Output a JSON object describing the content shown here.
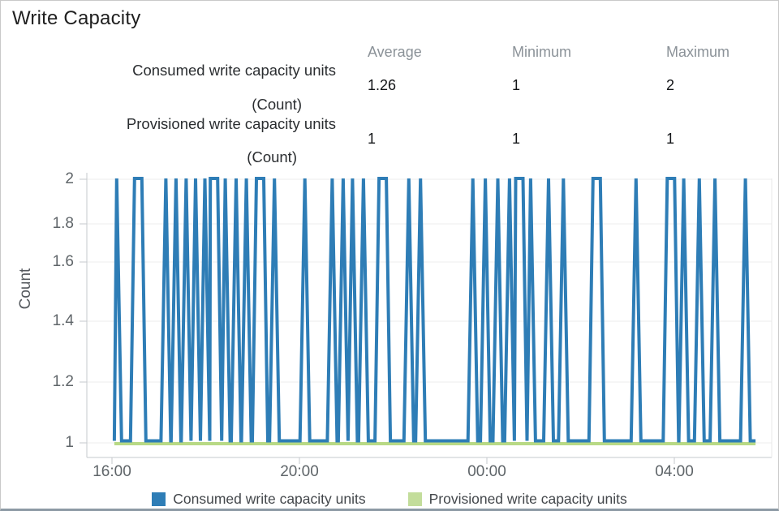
{
  "header": {
    "title": "Write Capacity"
  },
  "stats_table": {
    "columns": [
      "Average",
      "Minimum",
      "Maximum"
    ],
    "rows": [
      {
        "label": "Consumed write capacity units",
        "unit": "(Count)",
        "average": "1.26",
        "minimum": "1",
        "maximum": "2"
      },
      {
        "label": "Provisioned write capacity units",
        "unit": "(Count)",
        "average": "1",
        "minimum": "1",
        "maximum": "1"
      }
    ]
  },
  "chart_data": {
    "type": "line",
    "title": "Write Capacity",
    "xlabel": "",
    "ylabel": "Count",
    "ylim": [
      1,
      2
    ],
    "yticks": [
      2,
      1.8,
      1.6,
      1.4,
      1.2,
      1
    ],
    "ytick_labels": [
      "2",
      "1.8",
      "1.6",
      "1.4",
      "1.2",
      "1"
    ],
    "grid": "horizontal",
    "legend_position": "bottom",
    "x_axis": {
      "tick_labels": [
        "16:00",
        "20:00",
        "00:00",
        "04:00"
      ],
      "tick_minutes": [
        0,
        240,
        480,
        720
      ],
      "start_minute": 3,
      "end_minute": 824
    },
    "series": [
      {
        "name": "Consumed write capacity units",
        "color": "#2e7db6",
        "style": "spikes",
        "base_value": 1,
        "spike_value": 2,
        "spikes_minutes_wide": [
          [
            6,
            0
          ],
          [
            31,
            1
          ],
          [
            69,
            0
          ],
          [
            82,
            0
          ],
          [
            95,
            0
          ],
          [
            107,
            0
          ],
          [
            119,
            0
          ],
          [
            128,
            1
          ],
          [
            145,
            0
          ],
          [
            159,
            0
          ],
          [
            172,
            0
          ],
          [
            187,
            1
          ],
          [
            208,
            0
          ],
          [
            247,
            0
          ],
          [
            282,
            0
          ],
          [
            296,
            0
          ],
          [
            308,
            0
          ],
          [
            322,
            0
          ],
          [
            344,
            1
          ],
          [
            380,
            0
          ],
          [
            395,
            0
          ],
          [
            462,
            0
          ],
          [
            478,
            0
          ],
          [
            494,
            0
          ],
          [
            509,
            0
          ],
          [
            519,
            1
          ],
          [
            536,
            0
          ],
          [
            559,
            0
          ],
          [
            578,
            0
          ],
          [
            618,
            1
          ],
          [
            671,
            0
          ],
          [
            713,
            1
          ],
          [
            732,
            0
          ],
          [
            752,
            0
          ],
          [
            772,
            0
          ],
          [
            811,
            0
          ]
        ]
      },
      {
        "name": "Provisioned write capacity units",
        "color": "#b8d985",
        "style": "constant",
        "value": 1
      }
    ],
    "legend": [
      {
        "label": "Consumed write capacity units",
        "color": "#2e7db6"
      },
      {
        "label": "Provisioned write capacity units",
        "color": "#c3dd9b"
      }
    ]
  }
}
